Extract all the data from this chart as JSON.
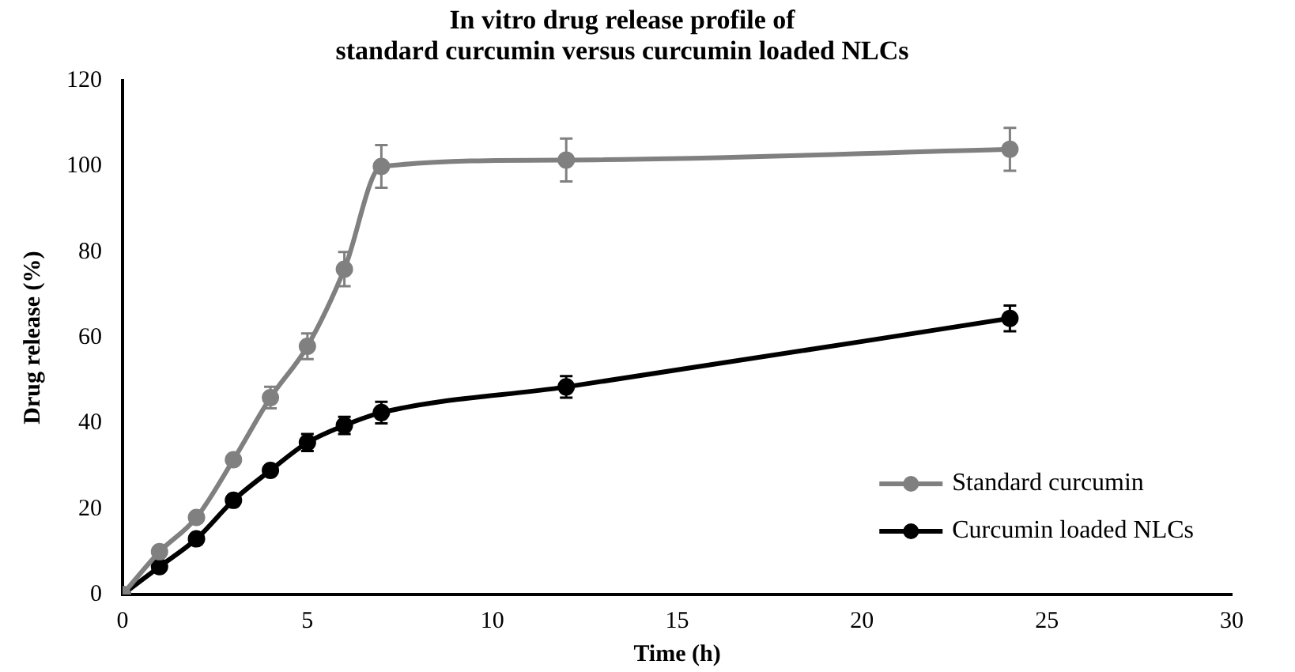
{
  "chart_data": {
    "type": "line",
    "title": "In vitro drug release profile of\nstandard curcumin versus curcumin loaded NLCs",
    "xlabel": "Time (h)",
    "ylabel": "Drug release (%)",
    "x": [
      0,
      1,
      2,
      3,
      4,
      5,
      6,
      7,
      12,
      24
    ],
    "series": [
      {
        "name": "Standard curcumin",
        "color": "#808080",
        "values": [
          0,
          10,
          18,
          31.5,
          46,
          58,
          76,
          100,
          101.5,
          104
        ],
        "errors": [
          null,
          null,
          null,
          null,
          2.5,
          3,
          4,
          5,
          5,
          5
        ]
      },
      {
        "name": "Curcumin loaded NLCs",
        "color": "#000000",
        "values": [
          0,
          6.5,
          13,
          22,
          29,
          35.5,
          39.5,
          42.5,
          48.5,
          64.5
        ],
        "errors": [
          null,
          null,
          null,
          null,
          null,
          2,
          2,
          2.5,
          2.5,
          3
        ]
      }
    ],
    "xlim": [
      0,
      30
    ],
    "xticks": [
      0,
      5,
      10,
      15,
      20,
      25,
      30
    ],
    "ylim": [
      0,
      120
    ],
    "yticks": [
      0,
      20,
      40,
      60,
      80,
      100,
      120
    ],
    "grid": false,
    "legend": "bottom right",
    "marker": "circle",
    "line_style": "solid"
  }
}
